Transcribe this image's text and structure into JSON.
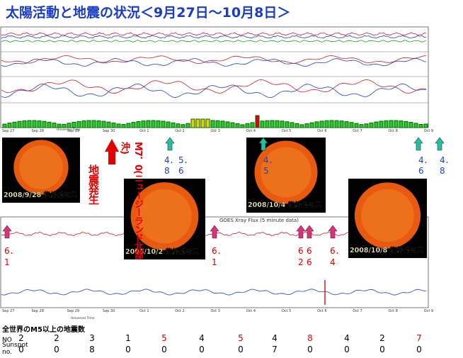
{
  "title": "太陽活動と地震の状況＜9月27日～10月8日＞",
  "photos": [
    {
      "label": "2008/9/28 紫外線写真"
    },
    {
      "label": "2008/10/2 紫外線写真"
    },
    {
      "label": "2008/10/4 紫外線写真"
    },
    {
      "label": "2008/10/8 紫外線写真"
    }
  ],
  "quake_note": {
    "magnitude": "M7．0(ニュージーランド北部沖)",
    "event": "地震発生"
  },
  "green_marks": [
    [
      "4．",
      "8"
    ],
    [
      "5．",
      "6"
    ],
    [
      "4．",
      "5"
    ],
    [
      "4．",
      "6"
    ],
    [
      "4．",
      "8"
    ]
  ],
  "pink_marks": [
    [
      "6．",
      "1"
    ],
    [
      "6．",
      "1"
    ],
    [
      "6",
      "2"
    ],
    [
      "6",
      "6"
    ],
    [
      "6．",
      "4"
    ]
  ],
  "upper_plot": {
    "x_labels": [
      "Sep 27",
      "Sep 28",
      "Sep 29",
      "Sep 30",
      "Oct 1",
      "Oct 2",
      "Oct 3",
      "Oct 4",
      "Oct 5",
      "Oct 6",
      "Oct 7",
      "Oct 8",
      "Oct 9"
    ],
    "x_title": "Universal Time"
  },
  "xray_plot": {
    "title": "GOES Xray Flux (5 minute data)",
    "x_labels": [
      "Sep 27",
      "Sep 28",
      "Sep 29",
      "Sep 30",
      "Oct 1",
      "Oct 2",
      "Oct 3",
      "Oct 4",
      "Oct 5",
      "Oct 6",
      "Oct 7",
      "Oct 8",
      "Oct 9"
    ],
    "x_title": "Universal Time"
  },
  "table": {
    "caption": "全世界のM5以上の地震数",
    "rows": [
      {
        "label": [
          "NO"
        ],
        "values": [
          2,
          2,
          3,
          1,
          5,
          4,
          5,
          4,
          8,
          4,
          2,
          7
        ],
        "colors": [
          "#000",
          "#000",
          "#000",
          "#000",
          "#e00000",
          "#000",
          "#e00000",
          "#000",
          "#e00000",
          "#000",
          "#000",
          "#e00000"
        ]
      },
      {
        "label": [
          "Sunspot",
          "no."
        ],
        "values": [
          0,
          0,
          8,
          0,
          0,
          0,
          0,
          7,
          0,
          0,
          0,
          0
        ],
        "colors": [
          "#000",
          "#000",
          "#000",
          "#000",
          "#000",
          "#000",
          "#000",
          "#000",
          "#000",
          "#000",
          "#000",
          "#000"
        ]
      }
    ]
  }
}
